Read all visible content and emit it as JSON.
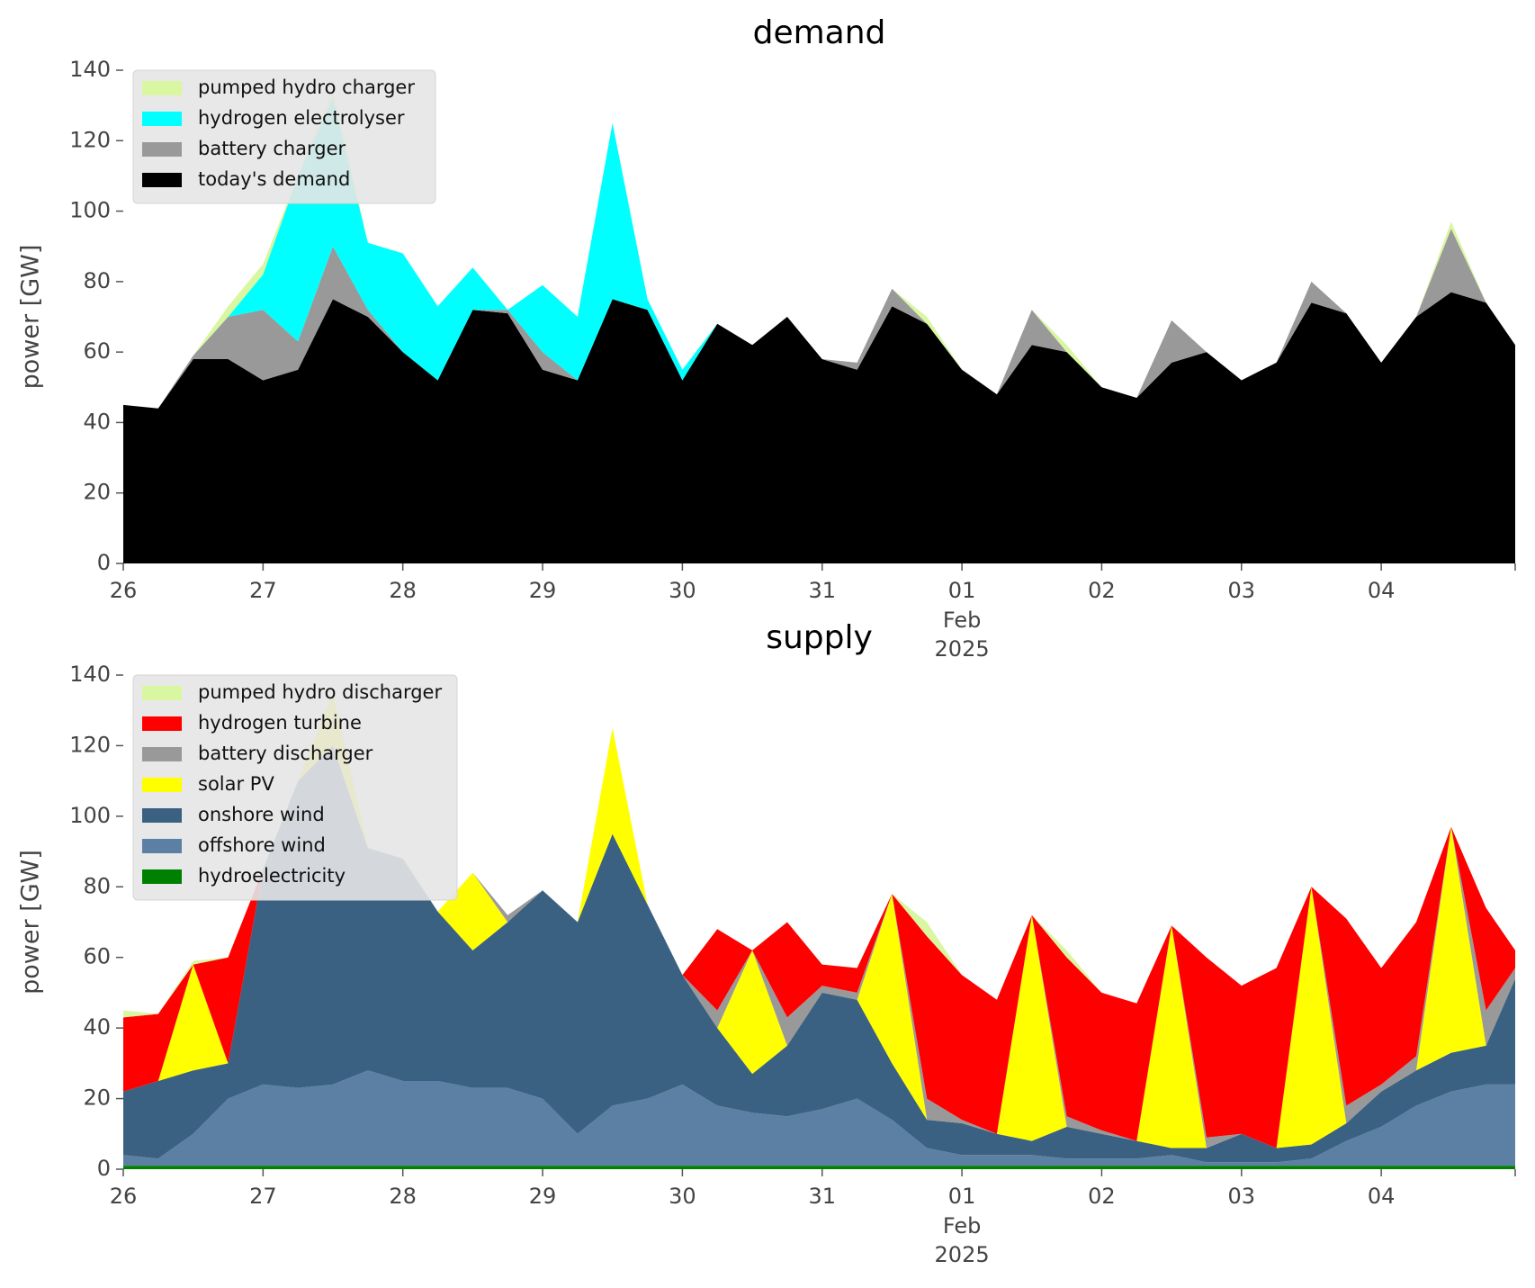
{
  "chart_data": [
    {
      "type": "stacked_area",
      "title": "demand",
      "ylabel": "power [GW]",
      "x": [
        "2025-01-26 00:00",
        "2025-01-26 06:00",
        "2025-01-26 12:00",
        "2025-01-26 18:00",
        "2025-01-27 00:00",
        "2025-01-27 06:00",
        "2025-01-27 12:00",
        "2025-01-27 18:00",
        "2025-01-28 00:00",
        "2025-01-28 06:00",
        "2025-01-28 12:00",
        "2025-01-28 18:00",
        "2025-01-29 00:00",
        "2025-01-29 06:00",
        "2025-01-29 12:00",
        "2025-01-29 18:00",
        "2025-01-30 00:00",
        "2025-01-30 06:00",
        "2025-01-30 12:00",
        "2025-01-30 18:00",
        "2025-01-31 00:00",
        "2025-01-31 06:00",
        "2025-01-31 12:00",
        "2025-01-31 18:00",
        "2025-02-01 00:00",
        "2025-02-01 06:00",
        "2025-02-01 12:00",
        "2025-02-01 18:00",
        "2025-02-02 00:00",
        "2025-02-02 06:00",
        "2025-02-02 12:00",
        "2025-02-02 18:00",
        "2025-02-03 00:00",
        "2025-02-03 06:00",
        "2025-02-03 12:00",
        "2025-02-03 18:00",
        "2025-02-04 00:00",
        "2025-02-04 06:00",
        "2025-02-04 12:00",
        "2025-02-04 18:00",
        "2025-02-04 23:00"
      ],
      "series": [
        {
          "name": "pumped hydro charger",
          "color": "#d9f7a1",
          "values": [
            0,
            0,
            0,
            3,
            3,
            0,
            3,
            0,
            0,
            0,
            0,
            0,
            0,
            0,
            0,
            0,
            0,
            0,
            0,
            0,
            0,
            0,
            0,
            2,
            0,
            0,
            0,
            2,
            0,
            0,
            0,
            0,
            0,
            0,
            0,
            0,
            0,
            0,
            2,
            0,
            0
          ]
        },
        {
          "name": "hydrogen electrolyser",
          "color": "#00ffff",
          "values": [
            0,
            0,
            0,
            0,
            10,
            47,
            42,
            19,
            28,
            21,
            12,
            0,
            19,
            18,
            50,
            3,
            3,
            0,
            0,
            0,
            0,
            0,
            0,
            0,
            0,
            0,
            0,
            0,
            0,
            0,
            0,
            0,
            0,
            0,
            0,
            0,
            0,
            0,
            0,
            0,
            0
          ]
        },
        {
          "name": "battery charger",
          "color": "#999999",
          "values": [
            0,
            0,
            1,
            12,
            20,
            8,
            15,
            2,
            0,
            0,
            0,
            1,
            5,
            0,
            0,
            0,
            0,
            0,
            0,
            0,
            0,
            2,
            5,
            0,
            0,
            0,
            10,
            0,
            0,
            0,
            12,
            0,
            0,
            0,
            6,
            0,
            0,
            0,
            18,
            0,
            0
          ]
        },
        {
          "name": "today's demand",
          "color": "#000000",
          "values": [
            45,
            44,
            58,
            58,
            52,
            55,
            75,
            70,
            60,
            52,
            72,
            71,
            55,
            52,
            75,
            72,
            52,
            68,
            62,
            70,
            58,
            55,
            73,
            68,
            55,
            48,
            62,
            60,
            50,
            47,
            57,
            60,
            52,
            57,
            74,
            71,
            57,
            70,
            77,
            74,
            62
          ]
        }
      ],
      "xlim": [
        "2025-01-26 00:00",
        "2025-02-04 23:00"
      ],
      "xticks": [
        {
          "value": "2025-01-26 00:00",
          "label": "26"
        },
        {
          "value": "2025-01-27 00:00",
          "label": "27"
        },
        {
          "value": "2025-01-28 00:00",
          "label": "28"
        },
        {
          "value": "2025-01-29 00:00",
          "label": "29"
        },
        {
          "value": "2025-01-30 00:00",
          "label": "30"
        },
        {
          "value": "2025-01-31 00:00",
          "label": "31"
        },
        {
          "value": "2025-02-01 00:00",
          "label": "01"
        },
        {
          "value": "2025-02-02 00:00",
          "label": "02"
        },
        {
          "value": "2025-02-03 00:00",
          "label": "03"
        },
        {
          "value": "2025-02-04 00:00",
          "label": "04"
        }
      ],
      "xtick_month": "Feb",
      "xtick_year": "2025",
      "ylim": [
        0,
        140
      ],
      "yticks": [
        0,
        20,
        40,
        60,
        80,
        100,
        120,
        140
      ],
      "legend": "upper left"
    },
    {
      "type": "stacked_area",
      "title": "supply",
      "ylabel": "power [GW]",
      "x": [
        "2025-01-26 00:00",
        "2025-01-26 06:00",
        "2025-01-26 12:00",
        "2025-01-26 18:00",
        "2025-01-27 00:00",
        "2025-01-27 06:00",
        "2025-01-27 12:00",
        "2025-01-27 18:00",
        "2025-01-28 00:00",
        "2025-01-28 06:00",
        "2025-01-28 12:00",
        "2025-01-28 18:00",
        "2025-01-29 00:00",
        "2025-01-29 06:00",
        "2025-01-29 12:00",
        "2025-01-29 18:00",
        "2025-01-30 00:00",
        "2025-01-30 06:00",
        "2025-01-30 12:00",
        "2025-01-30 18:00",
        "2025-01-31 00:00",
        "2025-01-31 06:00",
        "2025-01-31 12:00",
        "2025-01-31 18:00",
        "2025-02-01 00:00",
        "2025-02-01 06:00",
        "2025-02-01 12:00",
        "2025-02-01 18:00",
        "2025-02-02 00:00",
        "2025-02-02 06:00",
        "2025-02-02 12:00",
        "2025-02-02 18:00",
        "2025-02-03 00:00",
        "2025-02-03 06:00",
        "2025-02-03 12:00",
        "2025-02-03 18:00",
        "2025-02-04 00:00",
        "2025-02-04 06:00",
        "2025-02-04 12:00",
        "2025-02-04 18:00",
        "2025-02-04 23:00"
      ],
      "series": [
        {
          "name": "pumped hydro discharger",
          "color": "#d9f7a1",
          "values": [
            2,
            0,
            1,
            0,
            0,
            0,
            0,
            0,
            0,
            0,
            0,
            0,
            0,
            0,
            0,
            0,
            0,
            0,
            0,
            0,
            0,
            0,
            0,
            4,
            0,
            0,
            0,
            2,
            0,
            0,
            0,
            0,
            0,
            0,
            0,
            0,
            0,
            0,
            0,
            0,
            0
          ]
        },
        {
          "name": "hydrogen turbine",
          "color": "#ff0000",
          "values": [
            21,
            19,
            0,
            30,
            0,
            0,
            0,
            0,
            0,
            0,
            0,
            0,
            0,
            0,
            0,
            0,
            0,
            23,
            0,
            27,
            6,
            7,
            0,
            46,
            41,
            38,
            0,
            45,
            39,
            39,
            0,
            51,
            42,
            51,
            0,
            53,
            33,
            38,
            0,
            29,
            5
          ]
        },
        {
          "name": "battery discharger",
          "color": "#999999",
          "values": [
            0,
            0,
            0,
            0,
            0,
            0,
            0,
            0,
            0,
            0,
            0,
            2,
            0,
            0,
            0,
            0,
            0,
            5,
            0,
            8,
            2,
            2,
            0,
            6,
            1,
            0,
            0,
            3,
            1,
            0,
            0,
            3,
            0,
            0,
            0,
            5,
            2,
            4,
            0,
            10,
            3
          ]
        },
        {
          "name": "solar PV",
          "color": "#ffff00",
          "values": [
            0,
            0,
            30,
            0,
            0,
            0,
            15,
            0,
            0,
            0,
            22,
            0,
            0,
            0,
            30,
            0,
            0,
            0,
            35,
            0,
            0,
            0,
            48,
            0,
            0,
            0,
            64,
            0,
            0,
            0,
            63,
            0,
            0,
            0,
            73,
            0,
            0,
            0,
            64,
            0,
            0
          ]
        },
        {
          "name": "onshore wind",
          "color": "#3b6182",
          "values": [
            18,
            22,
            18,
            10,
            61,
            87,
            96,
            63,
            63,
            48,
            39,
            47,
            59,
            60,
            77,
            55,
            31,
            22,
            11,
            20,
            33,
            28,
            16,
            8,
            9,
            6,
            4,
            9,
            7,
            5,
            2,
            4,
            8,
            4,
            4,
            5,
            10,
            10,
            11,
            11,
            30
          ]
        },
        {
          "name": "offshore wind",
          "color": "#5c80a3",
          "values": [
            3,
            2,
            9,
            19,
            23,
            22,
            23,
            27,
            24,
            24,
            22,
            22,
            19,
            9,
            17,
            19,
            23,
            17,
            15,
            14,
            16,
            19,
            13,
            5,
            3,
            3,
            3,
            2,
            2,
            2,
            3,
            1,
            1,
            1,
            2,
            7,
            11,
            17,
            21,
            23,
            23
          ]
        },
        {
          "name": "hydroelectricity",
          "color": "#008000",
          "values": [
            1,
            1,
            1,
            1,
            1,
            1,
            1,
            1,
            1,
            1,
            1,
            1,
            1,
            1,
            1,
            1,
            1,
            1,
            1,
            1,
            1,
            1,
            1,
            1,
            1,
            1,
            1,
            1,
            1,
            1,
            1,
            1,
            1,
            1,
            1,
            1,
            1,
            1,
            1,
            1,
            1
          ]
        }
      ],
      "xlim": [
        "2025-01-26 00:00",
        "2025-02-04 23:00"
      ],
      "xticks": [
        {
          "value": "2025-01-26 00:00",
          "label": "26"
        },
        {
          "value": "2025-01-27 00:00",
          "label": "27"
        },
        {
          "value": "2025-01-28 00:00",
          "label": "28"
        },
        {
          "value": "2025-01-29 00:00",
          "label": "29"
        },
        {
          "value": "2025-01-30 00:00",
          "label": "30"
        },
        {
          "value": "2025-01-31 00:00",
          "label": "31"
        },
        {
          "value": "2025-02-01 00:00",
          "label": "01"
        },
        {
          "value": "2025-02-02 00:00",
          "label": "02"
        },
        {
          "value": "2025-02-03 00:00",
          "label": "03"
        },
        {
          "value": "2025-02-04 00:00",
          "label": "04"
        }
      ],
      "xtick_month": "Feb",
      "xtick_year": "2025",
      "ylim": [
        0,
        140
      ],
      "yticks": [
        0,
        20,
        40,
        60,
        80,
        100,
        120,
        140
      ],
      "legend": "upper left"
    }
  ]
}
